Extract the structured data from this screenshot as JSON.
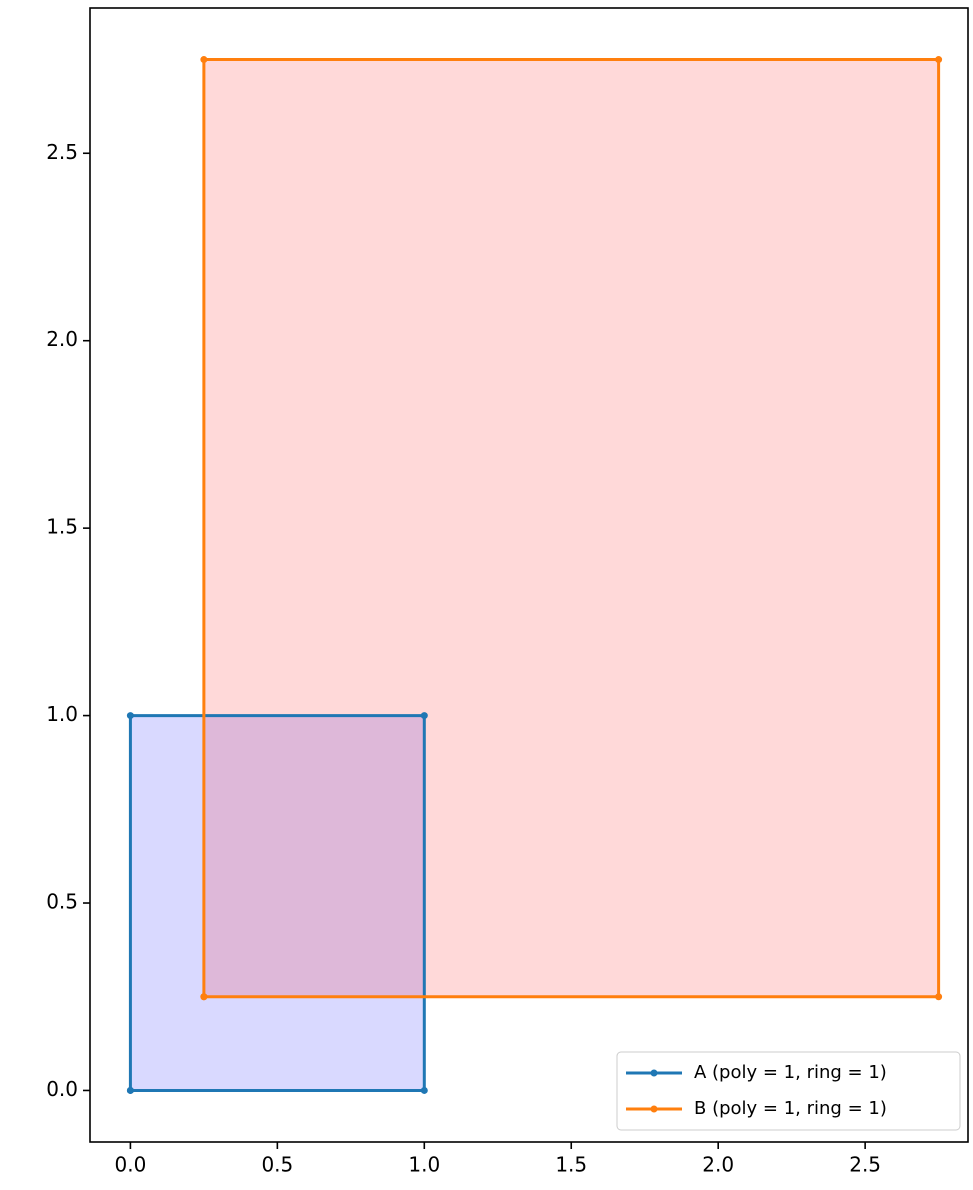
{
  "chart_data": {
    "type": "line",
    "series": [
      {
        "name": "A (poly = 1, ring = 1)",
        "color": "#1f77b4",
        "fill": "#0000ff",
        "fill_opacity": 0.15,
        "x": [
          0,
          1,
          1,
          0,
          0
        ],
        "values": [
          0,
          0,
          1,
          1,
          0
        ]
      },
      {
        "name": "B (poly = 1, ring = 1)",
        "color": "#ff7f0e",
        "fill": "#ff0000",
        "fill_opacity": 0.15,
        "x": [
          0.25,
          2.75,
          2.75,
          0.25,
          0.25
        ],
        "values": [
          0.25,
          0.25,
          2.75,
          2.75,
          0.25
        ]
      }
    ],
    "xlim": [
      -0.1375,
      2.85
    ],
    "ylim": [
      -0.1375,
      2.8875
    ],
    "xticks": [
      {
        "value": 0,
        "label": "0.0"
      },
      0.5,
      {
        "value": 1,
        "label": "1.0"
      },
      1.5,
      {
        "value": 2,
        "label": "2.0"
      },
      2.5
    ],
    "yticks": [
      {
        "value": 0,
        "label": "0.0"
      },
      0.5,
      {
        "value": 1,
        "label": "1.0"
      },
      1.5,
      {
        "value": 2,
        "label": "2.0"
      },
      2.5
    ],
    "grid": false,
    "legend": "lower right"
  }
}
